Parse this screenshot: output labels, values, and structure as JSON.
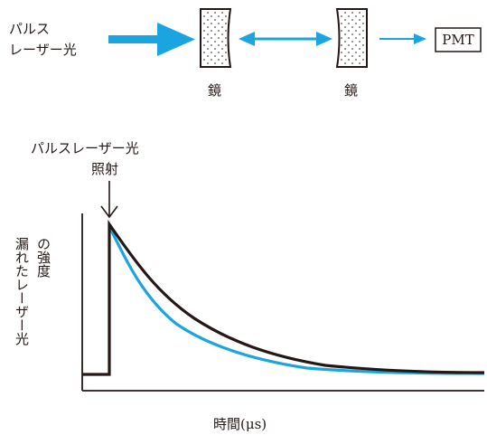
{
  "setup": {
    "laser_label_line1": "パルス",
    "laser_label_line2": "レーザー光",
    "mirror_left_label": "鏡",
    "mirror_right_label": "鏡",
    "detector_label": "PMT"
  },
  "graph": {
    "annotation_line1": "パルスレーザー光",
    "annotation_line2": "照射",
    "ylabel_line1": "漏れたレーザー光",
    "ylabel_line2": "の強度",
    "xlabel": "時間(μs)"
  },
  "colors": {
    "accent": "#1aa4e0",
    "ink": "#231815"
  }
}
